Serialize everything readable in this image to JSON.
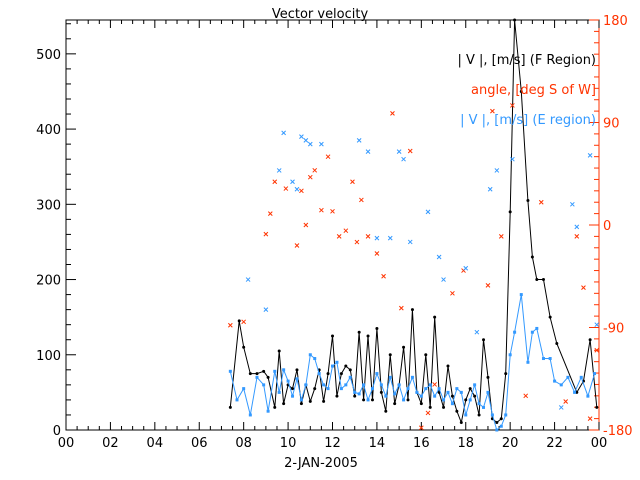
{
  "chart_data": {
    "type": "line",
    "title": "Vector velocity",
    "xlabel": "2-JAN-2005",
    "x_range_hours": [
      0,
      24
    ],
    "x_ticks": [
      "00",
      "02",
      "04",
      "06",
      "08",
      "10",
      "12",
      "14",
      "16",
      "18",
      "20",
      "22",
      "00"
    ],
    "y_left": {
      "range": [
        0,
        545
      ],
      "ticks": [
        "0",
        "100",
        "200",
        "300",
        "400",
        "500"
      ],
      "color": "#000000"
    },
    "y_right": {
      "range": [
        -180,
        180
      ],
      "ticks": [
        "-180",
        "-90",
        "0",
        "90",
        "180"
      ],
      "color": "#ff3300"
    },
    "legend_position": "top-right",
    "legend": [
      {
        "label": "| V |, [m/s] (F Region)",
        "color": "#000000"
      },
      {
        "label": "angle, [deg S of W]",
        "color": "#ff3300"
      },
      {
        "label": "| V |, [m/s] (E region)",
        "color": "#3399ff"
      }
    ],
    "series": [
      {
        "name": "| V |, [m/s] (F Region)",
        "axis": "left",
        "style": "line-dot",
        "color": "#000000",
        "x": [
          7.4,
          7.8,
          8.0,
          8.3,
          8.6,
          8.9,
          9.1,
          9.4,
          9.6,
          9.8,
          10.0,
          10.2,
          10.4,
          10.6,
          10.8,
          11.0,
          11.2,
          11.4,
          11.6,
          11.8,
          12.0,
          12.2,
          12.4,
          12.6,
          12.8,
          13.0,
          13.2,
          13.4,
          13.6,
          13.8,
          14.0,
          14.2,
          14.4,
          14.6,
          14.8,
          15.0,
          15.2,
          15.4,
          15.6,
          15.8,
          16.0,
          16.2,
          16.4,
          16.6,
          16.8,
          17.0,
          17.2,
          17.4,
          17.6,
          17.8,
          18.0,
          18.2,
          18.4,
          18.6,
          18.8,
          19.0,
          19.2,
          19.4,
          19.6,
          19.8,
          20.0,
          20.2,
          20.5,
          20.8,
          21.0,
          21.2,
          21.5,
          21.8,
          22.1,
          23.0,
          23.3,
          23.6,
          23.9
        ],
        "y": [
          30,
          145,
          110,
          75,
          75,
          78,
          70,
          30,
          105,
          35,
          60,
          55,
          80,
          35,
          60,
          38,
          55,
          80,
          38,
          75,
          125,
          45,
          75,
          85,
          80,
          45,
          130,
          40,
          125,
          40,
          135,
          50,
          25,
          100,
          35,
          60,
          110,
          40,
          160,
          50,
          35,
          100,
          30,
          150,
          50,
          30,
          85,
          45,
          25,
          10,
          40,
          55,
          45,
          20,
          120,
          70,
          15,
          10,
          15,
          75,
          290,
          545,
          450,
          305,
          230,
          200,
          200,
          150,
          115,
          50,
          65,
          120,
          30
        ]
      },
      {
        "name": "| V |, [m/s] (E region)",
        "axis": "left",
        "style": "line-square",
        "color": "#3399ff",
        "x": [
          7.4,
          7.7,
          8.0,
          8.3,
          8.6,
          8.9,
          9.1,
          9.4,
          9.6,
          9.8,
          10.0,
          10.2,
          10.4,
          10.6,
          10.8,
          11.0,
          11.2,
          11.4,
          11.6,
          11.8,
          12.0,
          12.2,
          12.4,
          12.6,
          12.8,
          13.0,
          13.2,
          13.4,
          13.6,
          13.8,
          14.0,
          14.2,
          14.4,
          14.6,
          14.8,
          15.0,
          15.2,
          15.4,
          15.6,
          15.8,
          16.0,
          16.2,
          16.4,
          16.6,
          16.8,
          17.0,
          17.2,
          17.4,
          17.6,
          17.8,
          18.0,
          18.2,
          18.4,
          18.6,
          18.8,
          19.0,
          19.2,
          19.4,
          19.6,
          19.8,
          20.0,
          20.2,
          20.5,
          20.8,
          21.0,
          21.2,
          21.5,
          21.8,
          22.0,
          22.3,
          22.6,
          22.9,
          23.2,
          23.5,
          23.8
        ],
        "y": [
          78,
          40,
          55,
          20,
          70,
          60,
          25,
          78,
          50,
          80,
          65,
          45,
          68,
          40,
          60,
          100,
          95,
          75,
          60,
          55,
          85,
          90,
          55,
          60,
          70,
          50,
          48,
          60,
          40,
          55,
          75,
          60,
          45,
          70,
          48,
          60,
          40,
          55,
          70,
          50,
          45,
          55,
          60,
          45,
          55,
          40,
          50,
          35,
          55,
          50,
          20,
          40,
          60,
          35,
          30,
          50,
          20,
          0,
          5,
          20,
          100,
          130,
          180,
          90,
          130,
          135,
          95,
          95,
          65,
          60,
          70,
          50,
          70,
          45,
          75
        ]
      },
      {
        "name": "angle, [deg S of W]",
        "axis": "right",
        "style": "marker-x",
        "color": "#ff3300",
        "x": [
          7.4,
          8.0,
          9.0,
          9.2,
          9.4,
          9.9,
          10.4,
          10.6,
          10.8,
          11.0,
          11.2,
          11.5,
          11.8,
          12.0,
          12.3,
          12.6,
          12.9,
          13.1,
          13.3,
          13.6,
          14.0,
          14.3,
          14.7,
          15.1,
          15.5,
          16.0,
          16.3,
          16.6,
          17.4,
          17.9,
          19.0,
          19.2,
          19.6,
          20.1,
          20.7,
          21.4,
          22.5,
          23.0,
          23.3,
          23.6,
          23.9
        ],
        "y": [
          -88,
          -85,
          -8,
          10,
          38,
          32,
          -18,
          30,
          0,
          42,
          48,
          13,
          60,
          12,
          -10,
          -5,
          38,
          -15,
          22,
          -10,
          -25,
          -45,
          98,
          -73,
          65,
          -178,
          -165,
          -140,
          -60,
          -40,
          -53,
          100,
          -10,
          105,
          -150,
          20,
          -155,
          -10,
          -55,
          -170,
          -110
        ]
      },
      {
        "name": "| V |, [m/s] (E region) scatter",
        "axis": "left",
        "style": "marker-x",
        "color": "#3399ff",
        "x": [
          8.2,
          9.0,
          9.6,
          9.8,
          10.2,
          10.4,
          10.6,
          10.8,
          11.0,
          11.5,
          13.2,
          13.6,
          14.0,
          14.6,
          15.0,
          15.2,
          15.5,
          16.3,
          16.8,
          17.0,
          18.0,
          18.5,
          19.1,
          19.4,
          20.1,
          22.3,
          22.8,
          23.0,
          23.6,
          23.9
        ],
        "y": [
          200,
          160,
          345,
          395,
          330,
          320,
          390,
          385,
          380,
          380,
          385,
          370,
          255,
          255,
          370,
          360,
          250,
          290,
          230,
          200,
          215,
          130,
          320,
          345,
          360,
          30,
          300,
          270,
          365,
          140
        ]
      }
    ]
  }
}
